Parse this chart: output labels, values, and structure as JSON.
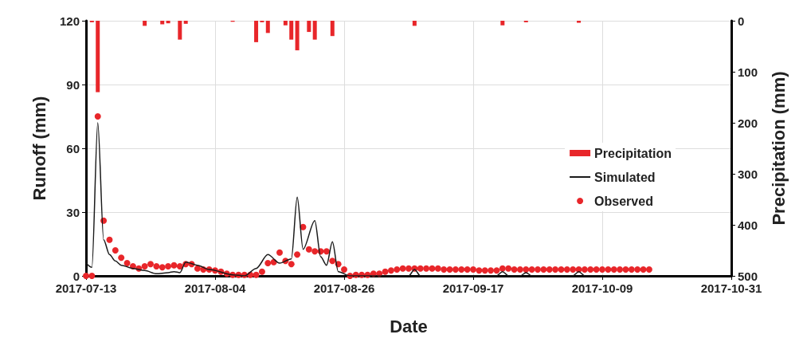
{
  "chart_data": {
    "type": "line",
    "xlabel": "Date",
    "ylabel": "Runoff (mm)",
    "y2label": "Precipitation (mm)",
    "xlim": [
      "2017-07-13",
      "2017-10-31"
    ],
    "xticks": [
      "2017-07-13",
      "2017-08-04",
      "2017-08-26",
      "2017-09-17",
      "2017-10-09",
      "2017-10-31"
    ],
    "ylim": [
      0,
      120
    ],
    "yticks": [
      0,
      30,
      60,
      90,
      120
    ],
    "y2lim": [
      500,
      0
    ],
    "y2ticks": [
      0,
      100,
      200,
      300,
      400,
      500
    ],
    "grid": true,
    "legend": "right",
    "series": [
      {
        "name": "Precipitation",
        "type": "bar",
        "axis": "y2",
        "color": "#e8262a",
        "x": [
          "2017-07-14",
          "2017-07-15",
          "2017-07-23",
          "2017-07-26",
          "2017-07-27",
          "2017-07-29",
          "2017-07-30",
          "2017-08-07",
          "2017-08-11",
          "2017-08-12",
          "2017-08-13",
          "2017-08-16",
          "2017-08-17",
          "2017-08-18",
          "2017-08-20",
          "2017-08-21",
          "2017-08-24",
          "2017-09-07",
          "2017-09-22",
          "2017-09-26",
          "2017-10-05"
        ],
        "values": [
          3,
          140,
          10,
          7,
          5,
          37,
          6,
          2,
          42,
          3,
          24,
          9,
          37,
          58,
          22,
          37,
          30,
          10,
          9,
          3,
          4
        ]
      },
      {
        "name": "Simulated",
        "color": "#1a1a1a",
        "marker": "none",
        "x": [
          "2017-07-13",
          "2017-07-14",
          "2017-07-15",
          "2017-07-16",
          "2017-07-17",
          "2017-07-18",
          "2017-07-19",
          "2017-07-21",
          "2017-07-23",
          "2017-07-25",
          "2017-07-27",
          "2017-07-28",
          "2017-07-29",
          "2017-07-30",
          "2017-08-01",
          "2017-08-03",
          "2017-08-07",
          "2017-08-09",
          "2017-08-11",
          "2017-08-13",
          "2017-08-15",
          "2017-08-17",
          "2017-08-18",
          "2017-08-19",
          "2017-08-21",
          "2017-08-22",
          "2017-08-23",
          "2017-08-24",
          "2017-08-25",
          "2017-08-27",
          "2017-09-06",
          "2017-09-07",
          "2017-09-08",
          "2017-09-21",
          "2017-09-22",
          "2017-09-23",
          "2017-09-25",
          "2017-09-26",
          "2017-09-27",
          "2017-10-04",
          "2017-10-05",
          "2017-10-06",
          "2017-10-17"
        ],
        "values": [
          6,
          4,
          72,
          17,
          10,
          7,
          5,
          3.5,
          2.5,
          1,
          1.5,
          2,
          1.5,
          6.5,
          5,
          3,
          0.5,
          0,
          3.5,
          10,
          6,
          8,
          37,
          12.5,
          26,
          9,
          5,
          16,
          2,
          0,
          0,
          3,
          0,
          0,
          2,
          0,
          0,
          1.5,
          0,
          0,
          2,
          0,
          0
        ]
      },
      {
        "name": "Observed",
        "type": "scatter",
        "color": "#e8262a",
        "marker": "circle",
        "x": [
          "2017-07-13",
          "2017-07-14",
          "2017-07-15",
          "2017-07-16",
          "2017-07-17",
          "2017-07-18",
          "2017-07-19",
          "2017-07-20",
          "2017-07-21",
          "2017-07-22",
          "2017-07-23",
          "2017-07-24",
          "2017-07-25",
          "2017-07-26",
          "2017-07-27",
          "2017-07-28",
          "2017-07-29",
          "2017-07-30",
          "2017-07-31",
          "2017-08-01",
          "2017-08-02",
          "2017-08-03",
          "2017-08-04",
          "2017-08-05",
          "2017-08-06",
          "2017-08-07",
          "2017-08-08",
          "2017-08-09",
          "2017-08-10",
          "2017-08-11",
          "2017-08-12",
          "2017-08-13",
          "2017-08-14",
          "2017-08-15",
          "2017-08-16",
          "2017-08-17",
          "2017-08-18",
          "2017-08-19",
          "2017-08-20",
          "2017-08-21",
          "2017-08-22",
          "2017-08-23",
          "2017-08-24",
          "2017-08-25",
          "2017-08-26",
          "2017-08-27",
          "2017-08-28",
          "2017-08-29",
          "2017-08-30",
          "2017-08-31",
          "2017-09-01",
          "2017-09-02",
          "2017-09-03",
          "2017-09-04",
          "2017-09-05",
          "2017-09-06",
          "2017-09-07",
          "2017-09-08",
          "2017-09-09",
          "2017-09-10",
          "2017-09-11",
          "2017-09-12",
          "2017-09-13",
          "2017-09-14",
          "2017-09-15",
          "2017-09-16",
          "2017-09-17",
          "2017-09-18",
          "2017-09-19",
          "2017-09-20",
          "2017-09-21",
          "2017-09-22",
          "2017-09-23",
          "2017-09-24",
          "2017-09-25",
          "2017-09-26",
          "2017-09-27",
          "2017-09-28",
          "2017-09-29",
          "2017-09-30",
          "2017-10-01",
          "2017-10-02",
          "2017-10-03",
          "2017-10-04",
          "2017-10-05",
          "2017-10-06",
          "2017-10-07",
          "2017-10-08",
          "2017-10-09",
          "2017-10-10",
          "2017-10-11",
          "2017-10-12",
          "2017-10-13",
          "2017-10-14",
          "2017-10-15",
          "2017-10-16",
          "2017-10-17"
        ],
        "values": [
          0,
          0,
          75,
          26,
          17,
          12,
          8.5,
          6,
          4.5,
          3.5,
          4.5,
          5.5,
          4.5,
          4,
          4.5,
          5,
          4.5,
          5.5,
          5.5,
          3.5,
          3,
          3,
          2.5,
          2,
          1,
          0.5,
          0.5,
          0.5,
          0.5,
          0.5,
          2,
          6,
          6.5,
          11,
          7,
          5.5,
          10,
          23,
          12.5,
          11.5,
          11.5,
          11.5,
          7,
          5.5,
          3,
          0,
          0.5,
          0.5,
          0.5,
          1,
          1,
          2,
          2.5,
          3,
          3.5,
          3.5,
          3.5,
          3.5,
          3.5,
          3.5,
          3.5,
          3,
          3,
          3,
          3,
          3,
          3,
          2.5,
          2.5,
          2.5,
          2.5,
          3.5,
          3.5,
          3,
          3,
          3,
          3,
          3,
          3,
          3,
          3,
          3,
          3,
          3,
          3,
          3,
          3,
          3,
          3,
          3,
          3,
          3,
          3,
          3,
          3,
          3,
          3
        ]
      }
    ]
  }
}
